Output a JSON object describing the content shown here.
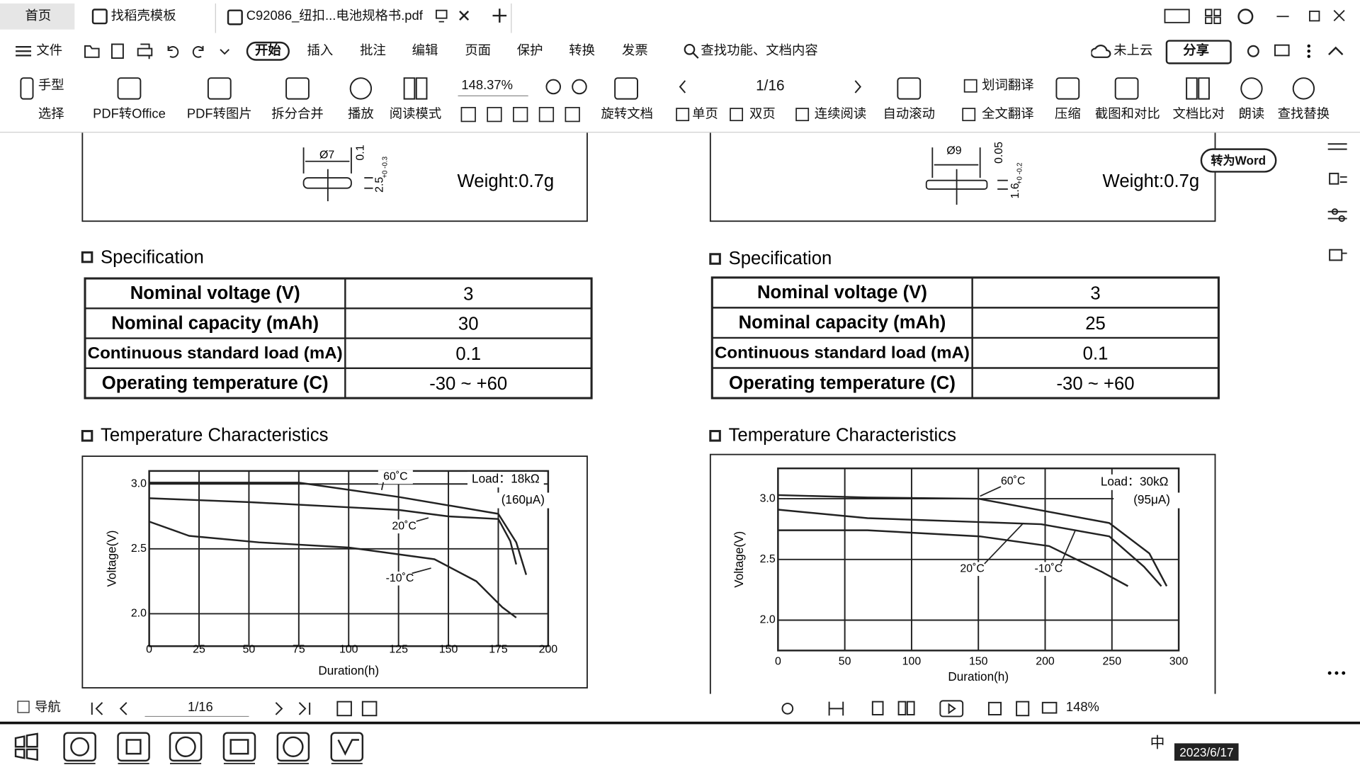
{
  "tabs": [
    "首页",
    "找稻壳模板",
    "C92086_纽扣...电池规格书.pdf"
  ],
  "menu": [
    "文件",
    "开始",
    "插入",
    "批注",
    "编辑",
    "页面",
    "保护",
    "转换",
    "发票"
  ],
  "search": "查找功能、文档内容",
  "cloud": "未上云",
  "share": "分享",
  "tools": [
    "手型",
    "选择",
    "PDF转Office",
    "PDF转图片",
    "拆分合并",
    "播放",
    "阅读模式",
    "旋转文档",
    "单页",
    "双页",
    "连续阅读",
    "自动滚动",
    "划词翻译",
    "全文翻译",
    "压缩",
    "截图和对比",
    "文档比对",
    "朗读",
    "查找替换"
  ],
  "zoom": "148.37%",
  "page_indicator": "1/16",
  "convert_word": "转为Word",
  "left": {
    "weight": "Weight:0.7g",
    "dims": [
      "Ø7",
      "0.1",
      "2.5",
      "+0 -0.3"
    ],
    "spec_title": "Specification",
    "spec_rows": [
      [
        "Nominal voltage (V)",
        "3"
      ],
      [
        "Nominal capacity (mAh)",
        "30"
      ],
      [
        "Continuous standard load (mA)",
        "0.1"
      ],
      [
        "Operating temperature (C)",
        "-30 ~ +60"
      ]
    ],
    "temp_title": "Temperature Characteristics",
    "chart": {
      "type": "line",
      "xlabel": "Duration(h)",
      "ylabel": "Voltage(V)",
      "xlim": [
        0,
        200
      ],
      "ylim": [
        1.75,
        3.1
      ],
      "xticks": [
        0,
        25,
        50,
        75,
        100,
        125,
        150,
        175,
        200
      ],
      "yticks": [
        {
          "value": 2,
          "label": "2.0"
        },
        {
          "value": 2.5,
          "label": "2.5"
        },
        {
          "value": 3,
          "label": "3.0"
        }
      ],
      "annotations": [
        "Load：18kΩ",
        "(160μA)"
      ],
      "series": [
        {
          "name": "60˚C",
          "color": "#222",
          "x": [
            0,
            75,
            125,
            175,
            184,
            189
          ],
          "values": [
            3.01,
            3.01,
            2.9,
            2.77,
            2.55,
            2.3
          ]
        },
        {
          "name": "20˚C",
          "color": "#222",
          "x": [
            0,
            50,
            125,
            150,
            175,
            181,
            184
          ],
          "values": [
            2.89,
            2.86,
            2.8,
            2.75,
            2.73,
            2.56,
            2.38
          ]
        },
        {
          "name": "-10˚C",
          "color": "#222",
          "x": [
            0,
            20,
            55,
            100,
            143,
            164,
            177,
            184
          ],
          "values": [
            2.71,
            2.6,
            2.55,
            2.51,
            2.42,
            2.25,
            2.05,
            1.97
          ]
        }
      ]
    }
  },
  "right": {
    "weight": "Weight:0.7g",
    "dims": [
      "Ø9",
      "0.05",
      "1.6",
      "+0 -0.2"
    ],
    "spec_title": "Specification",
    "spec_rows": [
      [
        "Nominal voltage (V)",
        "3"
      ],
      [
        "Nominal capacity (mAh)",
        "25"
      ],
      [
        "Continuous standard load (mA)",
        "0.1"
      ],
      [
        "Operating temperature (C)",
        "-30 ~ +60"
      ]
    ],
    "temp_title": "Temperature Characteristics",
    "chart": {
      "type": "line",
      "xlabel": "Duration(h)",
      "ylabel": "Voltage(V)",
      "xlim": [
        0,
        300
      ],
      "ylim": [
        1.75,
        3.25
      ],
      "xticks": [
        0,
        50,
        100,
        150,
        200,
        250,
        300
      ],
      "yticks": [
        {
          "value": 2,
          "label": "2.0"
        },
        {
          "value": 2.5,
          "label": "2.5"
        },
        {
          "value": 3,
          "label": "3.0"
        }
      ],
      "annotations": [
        "Load：30kΩ",
        "(95μA)"
      ],
      "series": [
        {
          "name": "60˚C",
          "color": "#222",
          "x": [
            0,
            67,
            150,
            248,
            278,
            291
          ],
          "values": [
            3.03,
            3.01,
            3.0,
            2.8,
            2.55,
            2.28
          ]
        },
        {
          "name": "20˚C",
          "color": "#222",
          "x": [
            0,
            67,
            197,
            248,
            274,
            287
          ],
          "values": [
            2.91,
            2.84,
            2.79,
            2.69,
            2.44,
            2.28
          ]
        },
        {
          "name": "-10˚C",
          "color": "#222",
          "x": [
            0,
            67,
            151,
            203,
            242,
            262
          ],
          "values": [
            2.74,
            2.74,
            2.69,
            2.61,
            2.4,
            2.28
          ]
        }
      ]
    }
  },
  "status": {
    "nav": "导航",
    "page": "1/16",
    "zoom": "148%"
  },
  "taskbar": {
    "ime": "中",
    "date": "2023/6/17"
  }
}
